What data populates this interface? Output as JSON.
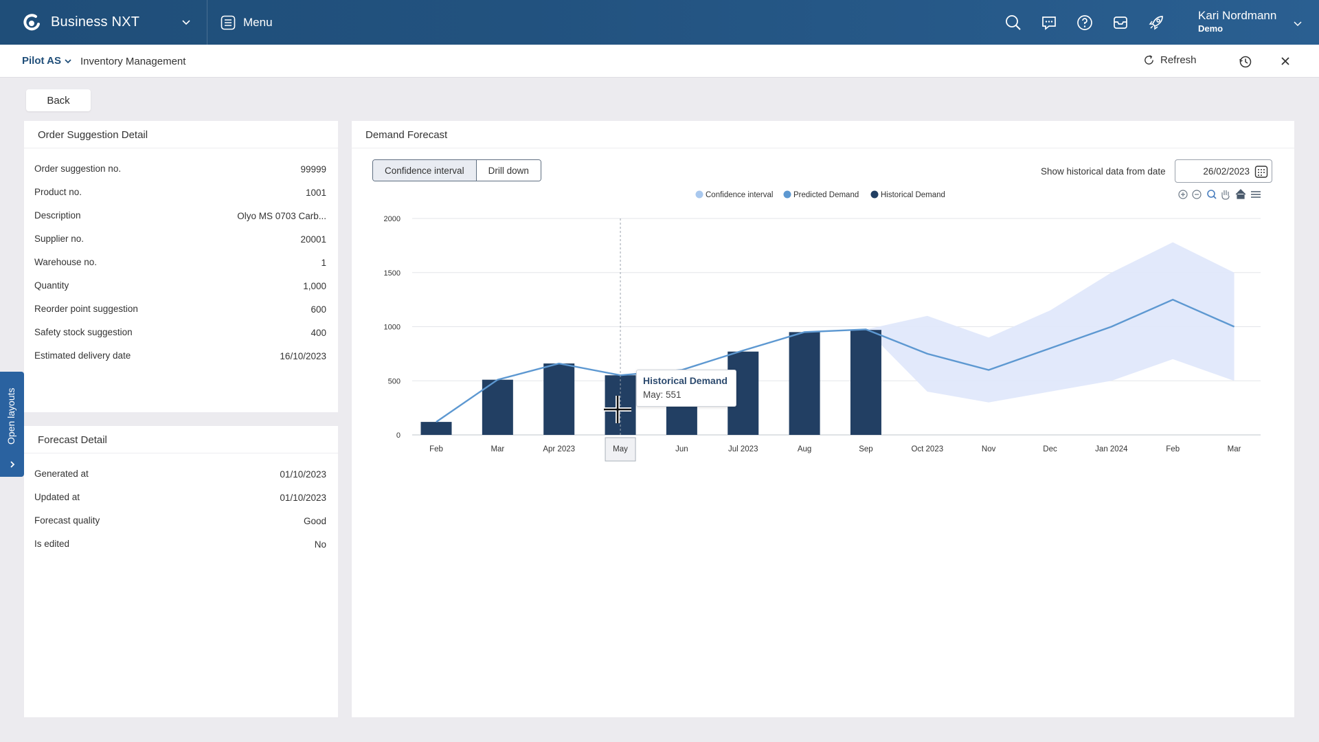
{
  "app": {
    "title": "Business NXT",
    "menu_label": "Menu"
  },
  "topbar": {
    "icons": [
      "search-icon",
      "chat-icon",
      "help-icon",
      "inbox-icon",
      "rocket-icon"
    ],
    "user_name": "Kari Nordmann",
    "user_sub": "Demo"
  },
  "subbar": {
    "company": "Pilot AS",
    "module": "Inventory Management",
    "refresh_label": "Refresh"
  },
  "back_label": "Back",
  "side_tab_label": "Open layouts",
  "order_panel": {
    "title": "Order Suggestion Detail",
    "rows": [
      {
        "k": "Order suggestion no.",
        "v": "99999"
      },
      {
        "k": "Product no.",
        "v": "1001"
      },
      {
        "k": "Description",
        "v": "Olyo MS 0703 Carb..."
      },
      {
        "k": "Supplier no.",
        "v": "20001"
      },
      {
        "k": "Warehouse no.",
        "v": "1"
      },
      {
        "k": "Quantity",
        "v": "1,000"
      },
      {
        "k": "Reorder point suggestion",
        "v": "600"
      },
      {
        "k": "Safety stock suggestion",
        "v": "400"
      },
      {
        "k": "Estimated delivery date",
        "v": "16/10/2023"
      }
    ]
  },
  "forecast_panel": {
    "title": "Forecast Detail",
    "rows": [
      {
        "k": "Generated at",
        "v": "01/10/2023"
      },
      {
        "k": "Updated at",
        "v": "01/10/2023"
      },
      {
        "k": "Forecast quality",
        "v": "Good"
      },
      {
        "k": "Is edited",
        "v": "No"
      }
    ]
  },
  "demand_panel": {
    "title": "Demand Forecast",
    "tabs": [
      "Confidence interval",
      "Drill down"
    ],
    "hist_label": "Show historical data from date",
    "hist_date": "26/02/2023"
  },
  "tooltip": {
    "title": "Historical Demand",
    "text": "May: 551"
  },
  "chart_data": {
    "type": "bar",
    "title": "",
    "categories": [
      "Feb",
      "Mar",
      "Apr 2023",
      "May",
      "Jun",
      "Jul 2023",
      "Aug",
      "Sep",
      "Oct 2023",
      "Nov",
      "Dec",
      "Jan 2024",
      "Feb",
      "Mar"
    ],
    "y_ticks": [
      "0",
      "500",
      "1000",
      "1500",
      "2000"
    ],
    "ylim": [
      0,
      2000
    ],
    "highlight_category": "May",
    "legend": [
      {
        "name": "Confidence interval",
        "color": "#a9c8ee"
      },
      {
        "name": "Predicted Demand",
        "color": "#5d98d1"
      },
      {
        "name": "Historical Demand",
        "color": "#213f63"
      }
    ],
    "series": [
      {
        "name": "Historical Demand",
        "type": "bar",
        "color": "#223f63",
        "values": [
          120,
          510,
          660,
          551,
          560,
          770,
          950,
          970,
          null,
          null,
          null,
          null,
          null,
          null
        ]
      },
      {
        "name": "Predicted Demand",
        "type": "line",
        "color": "#5d98d1",
        "values": [
          120,
          510,
          660,
          551,
          600,
          780,
          950,
          975,
          750,
          600,
          800,
          1000,
          1250,
          1000
        ]
      },
      {
        "name": "Confidence interval",
        "type": "area",
        "color": "#dfe7fb",
        "upper": [
          null,
          null,
          null,
          null,
          null,
          null,
          null,
          975,
          1100,
          900,
          1150,
          1500,
          1780,
          1500
        ],
        "lower": [
          null,
          null,
          null,
          null,
          null,
          null,
          null,
          975,
          400,
          300,
          400,
          500,
          700,
          500
        ]
      }
    ]
  }
}
